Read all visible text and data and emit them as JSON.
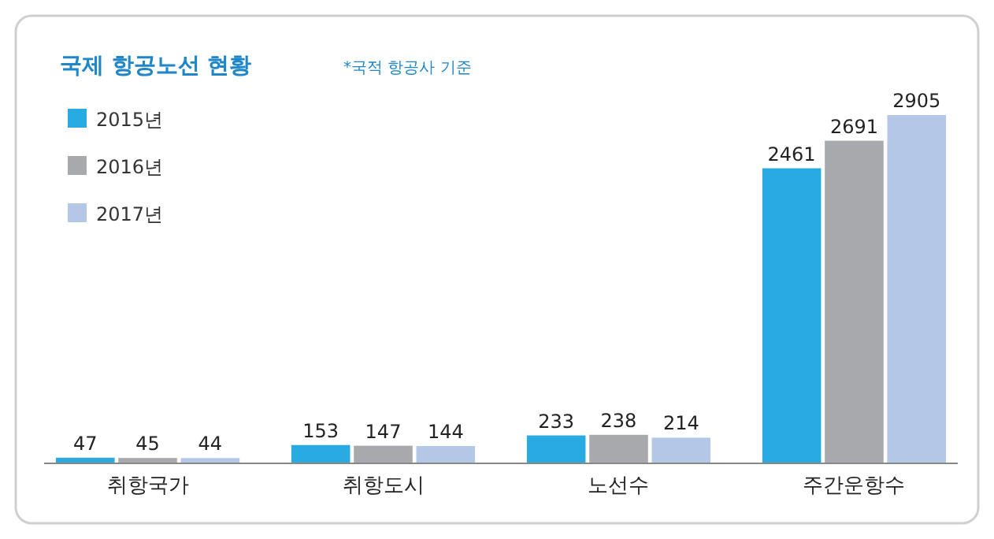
{
  "chart_data": {
    "type": "bar",
    "title": "국제 항공노선 현황",
    "annotations": [
      "*국적 항공사 기준"
    ],
    "categories": [
      "취항국가",
      "취항도시",
      "노선수",
      "주간운항수"
    ],
    "series": [
      {
        "name": "2015년",
        "color": "#29abe2",
        "values": [
          47,
          153,
          233,
          2461
        ]
      },
      {
        "name": "2016년",
        "color": "#a7a9ac",
        "values": [
          45,
          147,
          238,
          2691
        ]
      },
      {
        "name": "2017년",
        "color": "#b4c7e7",
        "values": [
          44,
          144,
          214,
          2905
        ]
      }
    ],
    "data_labels": true,
    "legend": "top left",
    "grid": false
  }
}
